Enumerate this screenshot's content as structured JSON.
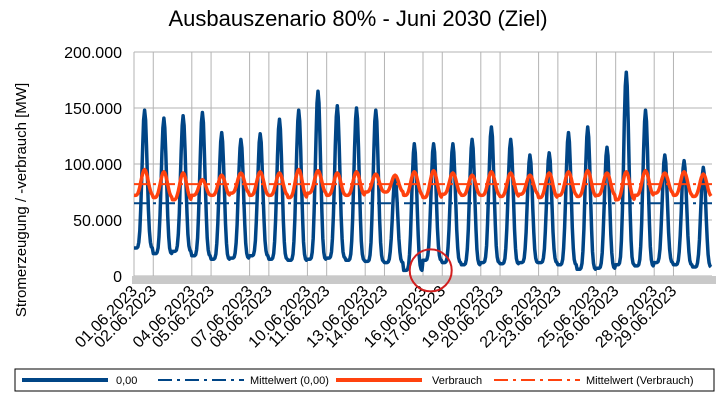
{
  "chart_data": {
    "type": "line",
    "title": "Ausbauszenario 80% - Juni 2030 (Ziel)",
    "ylabel": "Stromerzeugung / -verbrauch [MW]",
    "ylim": [
      0,
      200000
    ],
    "y_ticks": [
      "0",
      "50.000",
      "100.000",
      "150.000",
      "200.000"
    ],
    "y_tick_values": [
      0,
      50000,
      100000,
      150000,
      200000
    ],
    "x_ticks": [
      "01.06.2023",
      "02.06.2023",
      "04.06.2023",
      "05.06.2023",
      "07.06.2023",
      "08.06.2023",
      "10.06.2023",
      "11.06.2023",
      "13.06.2023",
      "14.06.2023",
      "16.06.2023",
      "17.06.2023",
      "19.06.2023",
      "20.06.2023",
      "22.06.2023",
      "23.06.2023",
      "25.06.2023",
      "26.06.2023",
      "28.06.2023",
      "29.06.2023"
    ],
    "x_tick_day_offsets": [
      0,
      1,
      3,
      4,
      6,
      7,
      9,
      10,
      12,
      13,
      15,
      16,
      18,
      19,
      21,
      22,
      24,
      25,
      27,
      28
    ],
    "grid": true,
    "legend_position": "bottom",
    "series": [
      {
        "name": "0,00",
        "style": "solid",
        "color": "#004586",
        "daily_peak_values": [
          148000,
          141000,
          143000,
          146000,
          128000,
          122000,
          127000,
          140000,
          148000,
          165000,
          152000,
          150000,
          148000,
          88000,
          118000,
          118000,
          118000,
          122000,
          133000,
          122000,
          108000,
          110000,
          128000,
          133000,
          115000,
          182000,
          148000,
          108000,
          103000,
          97000
        ],
        "daily_min_values": [
          25000,
          20000,
          22000,
          18000,
          15000,
          16000,
          18000,
          15000,
          14000,
          15000,
          16000,
          14000,
          13000,
          12000,
          5000,
          14000,
          12000,
          10000,
          12000,
          11000,
          12000,
          12000,
          10000,
          6000,
          7000,
          10000,
          9000,
          12000,
          10000,
          8000
        ]
      },
      {
        "name": "Mittelwert (0,00)",
        "style": "dash-dot",
        "color": "#004586",
        "value": 65000
      },
      {
        "name": "Verbrauch",
        "style": "solid",
        "color": "#ff420e",
        "daily_peak_values": [
          95000,
          93000,
          92000,
          86000,
          90000,
          92000,
          93000,
          92000,
          95000,
          94000,
          92000,
          93000,
          91000,
          90000,
          93000,
          94000,
          92000,
          90000,
          93000,
          92000,
          90000,
          92000,
          93000,
          94000,
          92000,
          93000,
          94000,
          92000,
          93000,
          91000
        ],
        "daily_min_values": [
          72000,
          70000,
          68000,
          72000,
          72000,
          74000,
          72000,
          72000,
          70000,
          74000,
          72000,
          72000,
          75000,
          75000,
          72000,
          70000,
          73000,
          72000,
          72000,
          71000,
          73000,
          70000,
          72000,
          71000,
          72000,
          68000,
          72000,
          74000,
          72000,
          71000
        ]
      },
      {
        "name": "Mittelwert (Verbrauch)",
        "style": "dash-dot",
        "color": "#ff420e",
        "value": 82000
      }
    ],
    "annotation": {
      "type": "circle",
      "color": "#d11f1f",
      "day_offset": 15.4,
      "value": 5000
    }
  }
}
